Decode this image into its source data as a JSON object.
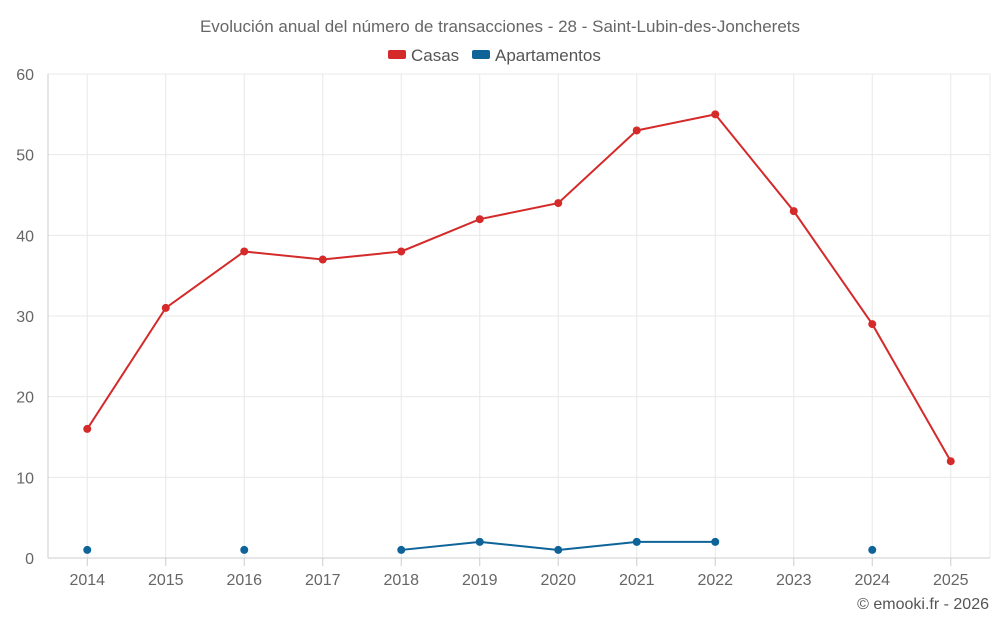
{
  "chart_data": {
    "type": "line",
    "title": "Evolución anual del número de transacciones - 28 - Saint-Lubin-des-Joncherets",
    "x": [
      "2014",
      "2015",
      "2016",
      "2017",
      "2018",
      "2019",
      "2020",
      "2021",
      "2022",
      "2023",
      "2024",
      "2025"
    ],
    "ylim": [
      0,
      60
    ],
    "yticks": [
      0,
      10,
      20,
      30,
      40,
      50,
      60
    ],
    "grid": true,
    "legend_position": "top-center",
    "series": [
      {
        "name": "Casas",
        "color": "#d42a2a",
        "values": [
          16,
          31,
          38,
          37,
          38,
          42,
          44,
          53,
          55,
          43,
          29,
          12
        ]
      },
      {
        "name": "Apartamentos",
        "color": "#0e6499",
        "values": [
          1,
          null,
          1,
          null,
          1,
          2,
          1,
          2,
          2,
          null,
          1,
          null
        ]
      }
    ]
  },
  "credit": "© emooki.fr - 2026"
}
